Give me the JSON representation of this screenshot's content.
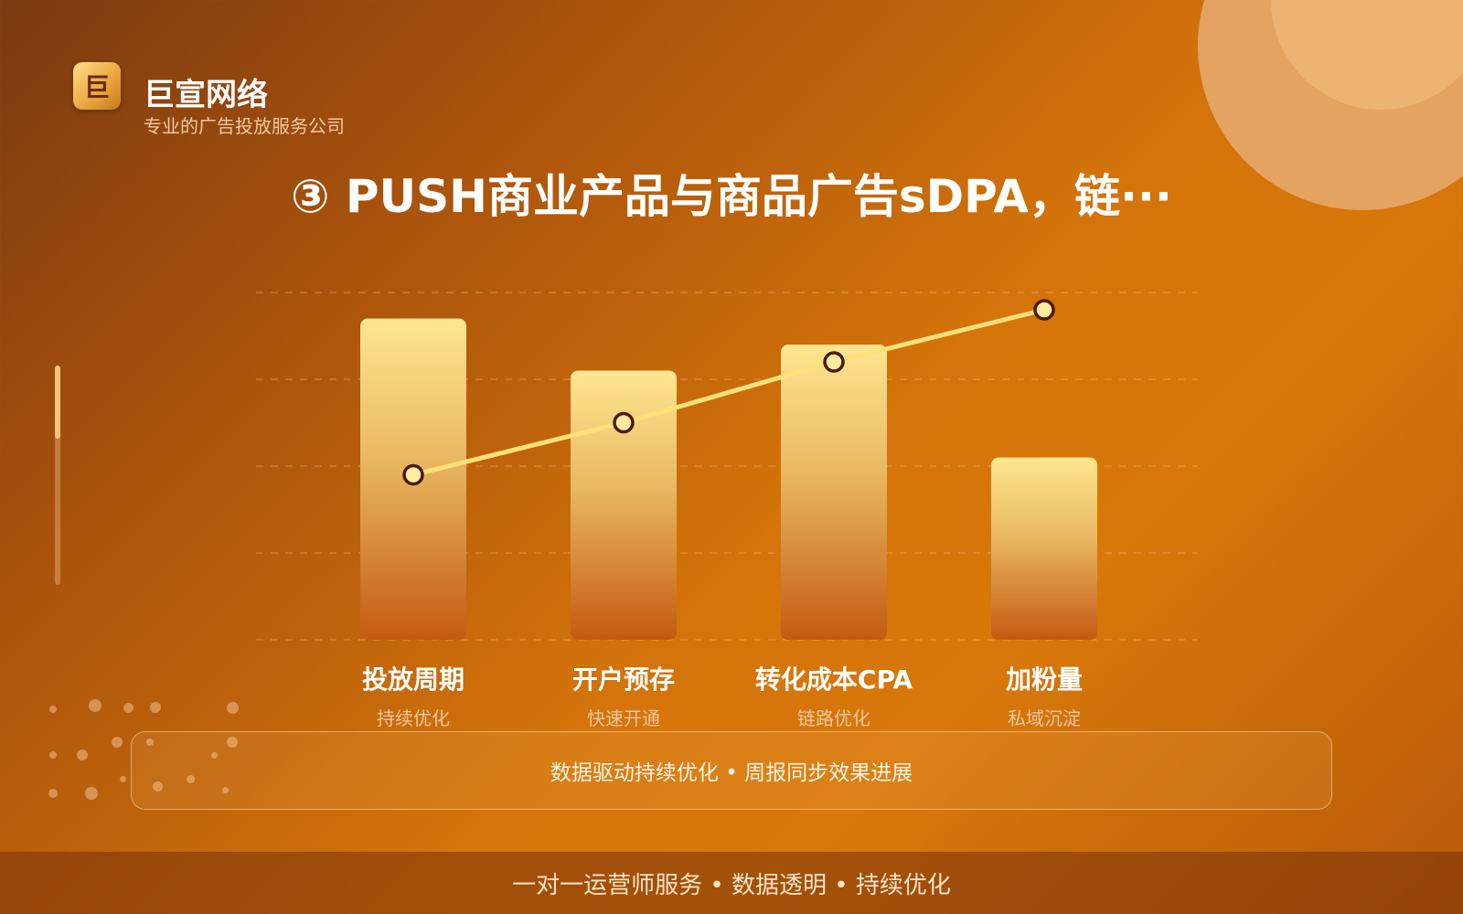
{
  "brand": {
    "logo_char": "巨",
    "name": "巨宣网络",
    "tagline": "专业的广告投放服务公司"
  },
  "title": "③ PUSH商业产品与商品广告sDPA，链···",
  "chart_data": {
    "type": "bar",
    "categories": [
      "投放周期",
      "开户预存",
      "转化成本CPA",
      "加粉量"
    ],
    "subcategories": [
      "持续优化",
      "快速开通",
      "链路优化",
      "私域沉淀"
    ],
    "series": [
      {
        "type": "bar",
        "values": [
          3.7,
          3.1,
          3.4,
          2.1
        ]
      },
      {
        "type": "line",
        "values": [
          1.9,
          2.5,
          3.2,
          3.8
        ]
      }
    ],
    "ylim": [
      0,
      4
    ],
    "grid": true,
    "title": "",
    "xlabel": "",
    "ylabel": "",
    "colors": {
      "bar_top": "#ffe690",
      "bar_bottom": "#c45a12",
      "line": "#ffe07a",
      "marker_fill": "#ffeaa0",
      "marker_stroke": "#4a1a05"
    }
  },
  "info_text": "数据驱动持续优化 • 周报同步效果进展",
  "footer_text": "一对一运营师服务 • 数据透明 • 持续优化"
}
